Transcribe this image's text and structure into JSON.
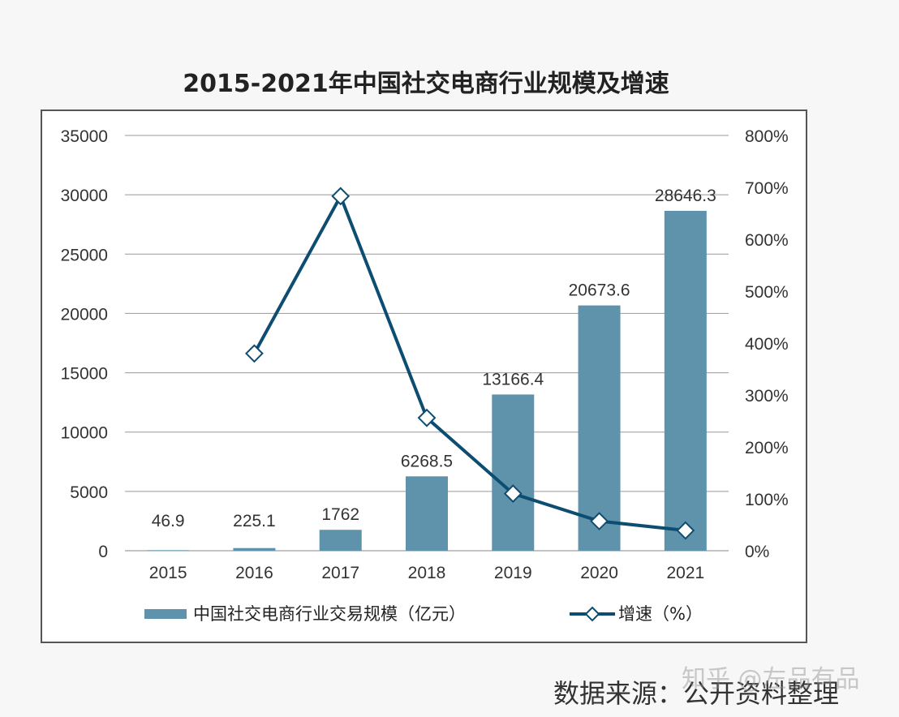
{
  "chart_data": {
    "type": "bar+line",
    "title": "2015-2021年中国社交电商行业规模及增速",
    "categories": [
      "2015",
      "2016",
      "2017",
      "2018",
      "2019",
      "2020",
      "2021"
    ],
    "series": [
      {
        "name": "中国社交电商行业交易规模（亿元）",
        "type": "bar",
        "axis": "left",
        "color": "#5e93ab",
        "values": [
          46.9,
          225.1,
          1762,
          6268.5,
          13166.4,
          20673.6,
          28646.3
        ],
        "labels": [
          "46.9",
          "225.1",
          "1762",
          "6268.5",
          "13166.4",
          "20673.6",
          "28646.3"
        ]
      },
      {
        "name": "增速（%）",
        "type": "line",
        "axis": "right",
        "color": "#0e4d72",
        "marker": "diamond",
        "values": [
          null,
          380,
          683,
          256,
          110,
          57,
          39
        ]
      }
    ],
    "ylim_left": [
      0,
      35000
    ],
    "yticks_left": [
      "0",
      "5000",
      "10000",
      "15000",
      "20000",
      "25000",
      "30000",
      "35000"
    ],
    "ylim_right": [
      0,
      800
    ],
    "yticks_right": [
      "0%",
      "100%",
      "200%",
      "300%",
      "400%",
      "500%",
      "600%",
      "700%",
      "800%"
    ],
    "grid": true,
    "legend_placement": "bottom"
  },
  "source": "数据来源：公开资料整理",
  "watermark": "知乎 @左品有品"
}
